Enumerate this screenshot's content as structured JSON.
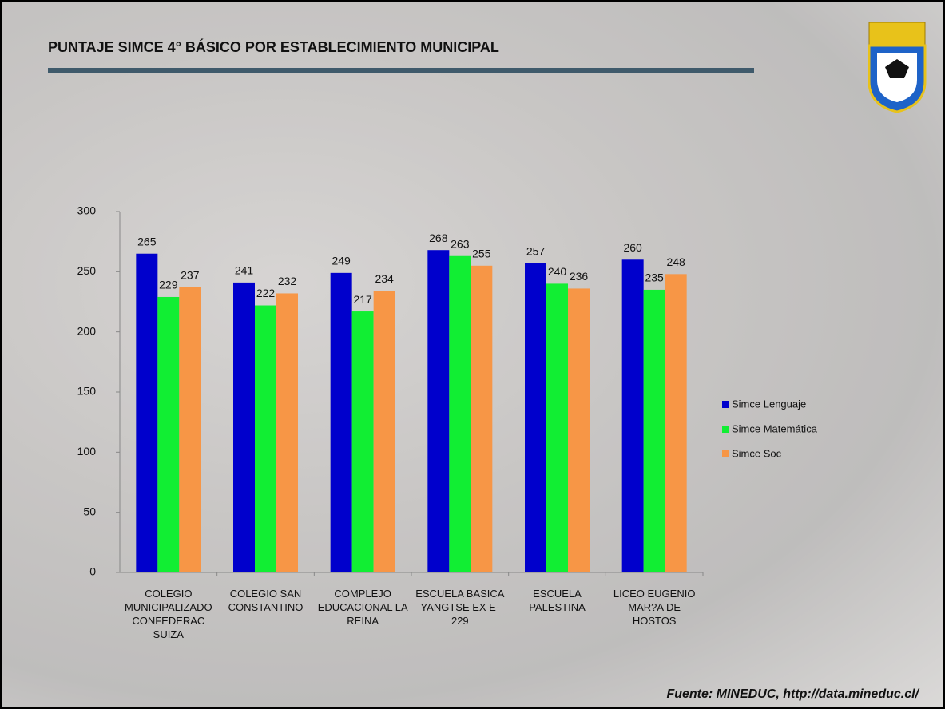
{
  "chart_data": {
    "type": "bar",
    "title": "PUNTAJE SIMCE 4° BÁSICO POR ESTABLECIMIENTO MUNICIPAL",
    "categories": [
      "COLEGIO MUNICIPALIZADO CONFEDERAC SUIZA",
      "COLEGIO SAN CONSTANTINO",
      "COMPLEJO EDUCACIONAL LA REINA",
      "ESCUELA BASICA YANGTSE EX E-229",
      "ESCUELA PALESTINA",
      "LICEO EUGENIO MAR?A DE HOSTOS"
    ],
    "series": [
      {
        "name": "Simce Lenguaje",
        "color": "#0000cc",
        "values": [
          265,
          241,
          249,
          268,
          257,
          260
        ]
      },
      {
        "name": "Simce Matemática",
        "color": "#11ee33",
        "values": [
          229,
          222,
          217,
          263,
          240,
          235
        ]
      },
      {
        "name": "Simce Soc",
        "color": "#f79646",
        "values": [
          237,
          232,
          234,
          255,
          236,
          248
        ]
      }
    ],
    "ylim": [
      0,
      300
    ],
    "yticks": [
      0,
      50,
      100,
      150,
      200,
      250,
      300
    ],
    "grid": false,
    "legend": "right"
  },
  "footer": {
    "source": "Fuente: MINEDUC, http://data.mineduc.cl/"
  }
}
